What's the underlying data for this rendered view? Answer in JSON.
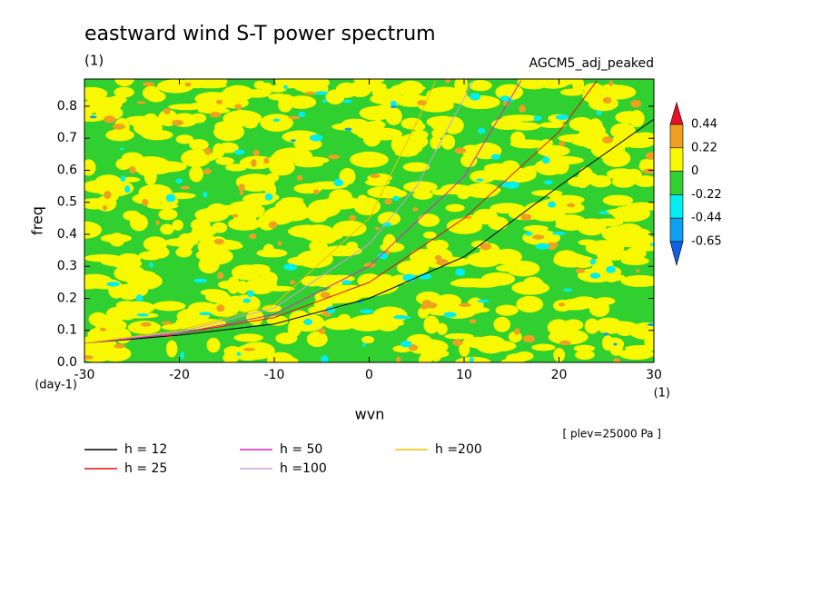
{
  "chart_data": {
    "type": "line",
    "title": "eastward wind S-T power spectrum",
    "subtitle": "(1)",
    "annotation": "AGCM5_adj_peaked",
    "footnote": "[ plev=25000 Pa ]",
    "x_label": "wvn",
    "x_unit": "(1)",
    "y_label": "freq",
    "y_unit": "(day-1)",
    "xlim": [
      -30,
      30
    ],
    "ylim": [
      0,
      0.885
    ],
    "xticks": [
      -30,
      -20,
      -10,
      0,
      10,
      20,
      30
    ],
    "yticks": [
      {
        "value": 0,
        "label": "0.0"
      },
      0.1,
      0.2,
      0.3,
      0.4,
      0.5,
      0.6,
      0.7,
      0.8
    ],
    "series": [
      {
        "name": "h = 12",
        "color": "#000000",
        "x": [
          -30,
          -20,
          -10,
          0,
          10,
          20,
          30
        ],
        "values": [
          0.06,
          0.085,
          0.12,
          0.2,
          0.33,
          0.55,
          0.76
        ]
      },
      {
        "name": "h = 25",
        "color": "#e01010",
        "x": [
          -30,
          -20,
          -10,
          0,
          10,
          20,
          24
        ],
        "values": [
          0.06,
          0.09,
          0.14,
          0.25,
          0.45,
          0.72,
          0.88
        ]
      },
      {
        "name": "h = 50",
        "color": "#e020c0",
        "x": [
          -30,
          -20,
          -10,
          0,
          10,
          16
        ],
        "values": [
          0.06,
          0.09,
          0.15,
          0.3,
          0.58,
          0.88
        ]
      },
      {
        "name": "h =100",
        "color": "#c8a0e0",
        "x": [
          -30,
          -20,
          -10,
          0,
          5,
          11
        ],
        "values": [
          0.06,
          0.095,
          0.17,
          0.37,
          0.55,
          0.88
        ]
      },
      {
        "name": "h =200",
        "color": "#f0c000",
        "x": [
          -30,
          -20,
          -10,
          0,
          5,
          7
        ],
        "values": [
          0.06,
          0.1,
          0.18,
          0.45,
          0.75,
          0.88
        ]
      }
    ],
    "colorbar": {
      "levels": [
        0.44,
        0.22,
        0,
        -0.22,
        -0.44,
        -0.65
      ],
      "colors": [
        "#e8102a",
        "#f0a020",
        "#f8f800",
        "#30d030",
        "#00f0f0",
        "#10a0f0",
        "#1060e8"
      ]
    }
  }
}
